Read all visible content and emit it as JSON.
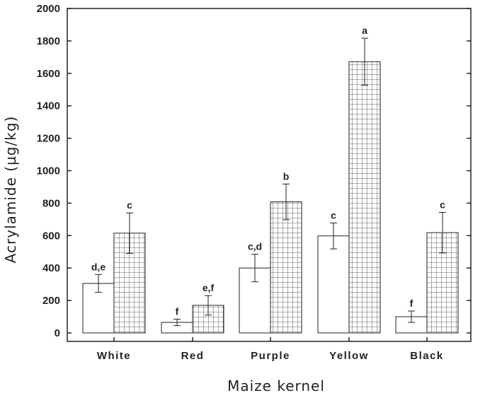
{
  "chart_data": {
    "type": "bar",
    "xlabel": "Maize kernel",
    "ylabel": "Acrylamide (µg/kg)",
    "ylim": [
      0,
      2000
    ],
    "yticks": [
      0,
      200,
      400,
      600,
      800,
      1000,
      1200,
      1400,
      1600,
      1800,
      2000
    ],
    "categories": [
      "White",
      "Red",
      "Purple",
      "Yellow",
      "Black"
    ],
    "grid": false,
    "series": [
      {
        "fill": "white",
        "values": [
          305,
          65,
          400,
          598,
          100
        ],
        "errors": [
          55,
          20,
          85,
          80,
          35
        ],
        "labels": [
          "d,e",
          "f",
          "c,d",
          "c",
          "f"
        ]
      },
      {
        "fill": "grid-hatch",
        "values": [
          615,
          170,
          808,
          1672,
          618
        ],
        "errors": [
          125,
          60,
          110,
          145,
          125
        ],
        "labels": [
          "c",
          "e,f",
          "b",
          "a",
          "c"
        ]
      }
    ]
  }
}
